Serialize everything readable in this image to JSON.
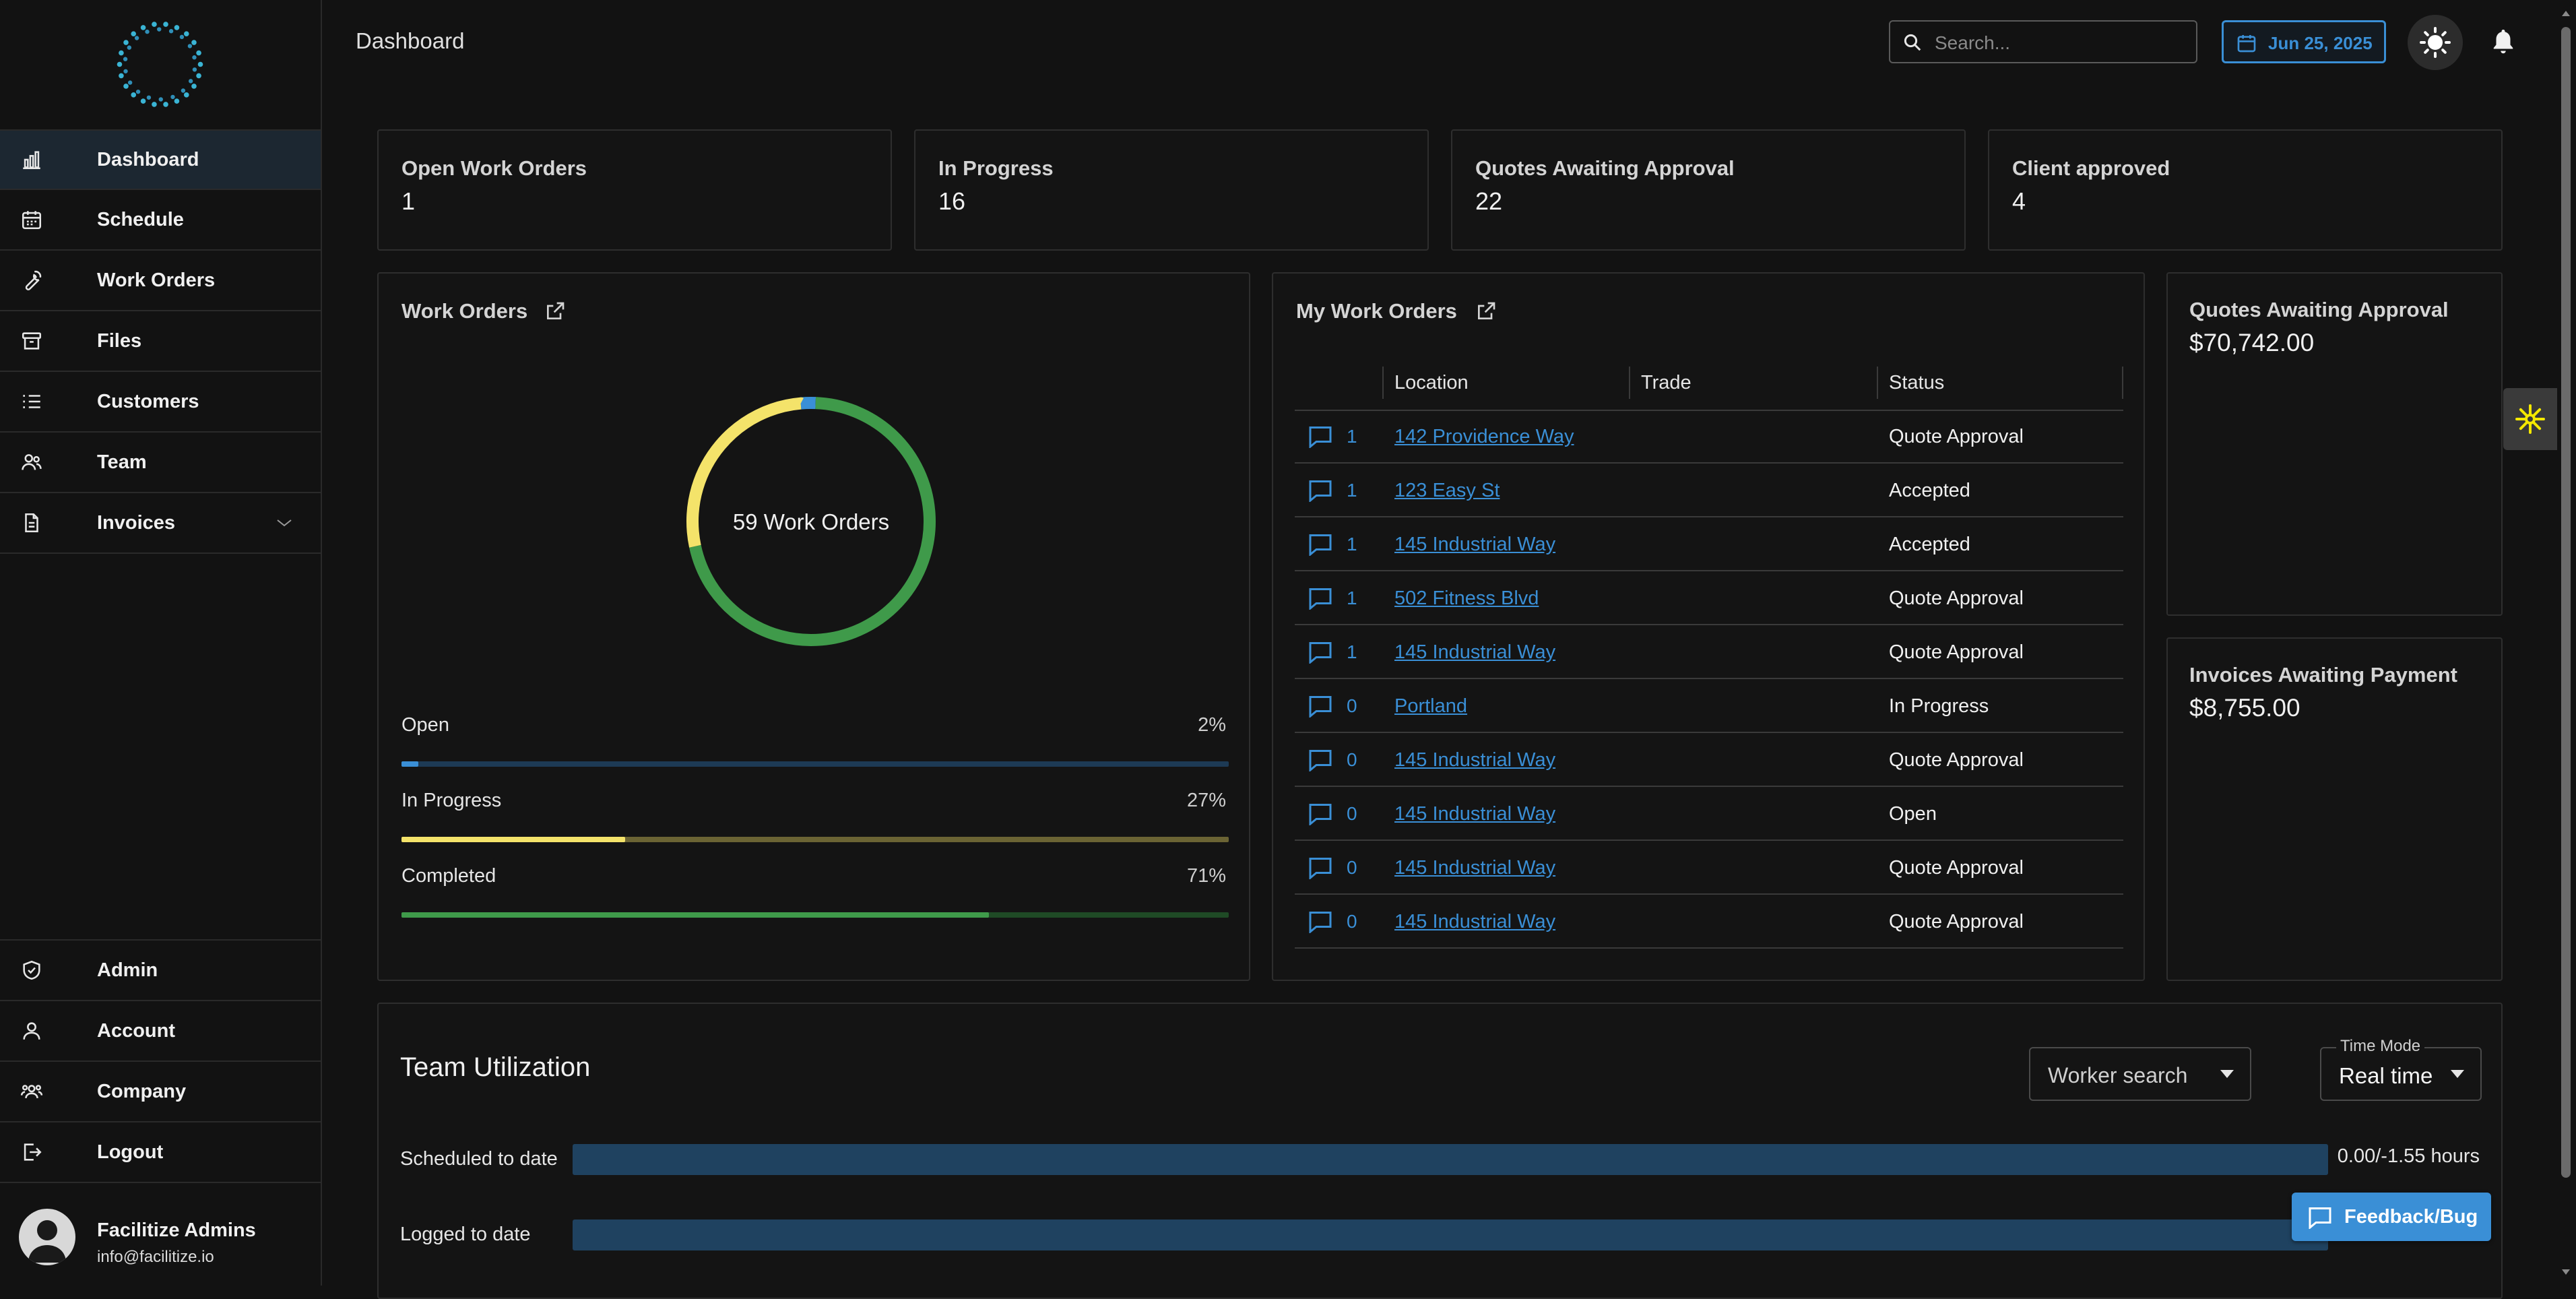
{
  "header": {
    "page_title": "Dashboard",
    "search_placeholder": "Search...",
    "date": "Jun 25, 2025"
  },
  "sidebar": {
    "nav": [
      {
        "label": "Dashboard",
        "icon": "bar-chart-icon",
        "active": true
      },
      {
        "label": "Schedule",
        "icon": "calendar-icon"
      },
      {
        "label": "Work Orders",
        "icon": "wrench-icon"
      },
      {
        "label": "Files",
        "icon": "archive-icon"
      },
      {
        "label": "Customers",
        "icon": "list-icon"
      },
      {
        "label": "Team",
        "icon": "users-icon"
      },
      {
        "label": "Invoices",
        "icon": "file-dollar-icon",
        "expandable": true
      }
    ],
    "bottom_nav": [
      {
        "label": "Admin",
        "icon": "shield-check-icon"
      },
      {
        "label": "Account",
        "icon": "user-icon"
      },
      {
        "label": "Company",
        "icon": "group-icon"
      },
      {
        "label": "Logout",
        "icon": "logout-icon"
      }
    ],
    "user": {
      "name": "Facilitize Admins",
      "email": "info@facilitize.io"
    }
  },
  "stats": [
    {
      "title": "Open Work Orders",
      "value": "1"
    },
    {
      "title": "In Progress",
      "value": "16"
    },
    {
      "title": "Quotes Awaiting Approval",
      "value": "22"
    },
    {
      "title": "Client approved",
      "value": "4"
    }
  ],
  "work_orders": {
    "title": "Work Orders",
    "center_label": "59 Work Orders",
    "breakdown": [
      {
        "label": "Open",
        "pct": "2%",
        "fraction": 0.02,
        "color": "#3a8fd6",
        "track": "#1d3a55"
      },
      {
        "label": "In Progress",
        "pct": "27%",
        "fraction": 0.27,
        "color": "#f4e36a",
        "track": "#6b6434"
      },
      {
        "label": "Completed",
        "pct": "71%",
        "fraction": 0.71,
        "color": "#3f9a4a",
        "track": "#1f4a25"
      }
    ]
  },
  "my_work_orders": {
    "title": "My Work Orders",
    "columns": [
      "Location",
      "Trade",
      "Status"
    ],
    "rows": [
      {
        "count": "1",
        "location": "142 Providence Way",
        "trade": "",
        "status": "Quote Approval"
      },
      {
        "count": "1",
        "location": "123 Easy St",
        "trade": "",
        "status": "Accepted"
      },
      {
        "count": "1",
        "location": "145 Industrial Way",
        "trade": "",
        "status": "Accepted"
      },
      {
        "count": "1",
        "location": "502 Fitness Blvd",
        "trade": "",
        "status": "Quote Approval"
      },
      {
        "count": "1",
        "location": "145 Industrial Way",
        "trade": "",
        "status": "Quote Approval"
      },
      {
        "count": "0",
        "location": "Portland",
        "trade": "",
        "status": "In Progress"
      },
      {
        "count": "0",
        "location": "145 Industrial Way",
        "trade": "",
        "status": "Quote Approval"
      },
      {
        "count": "0",
        "location": "145 Industrial Way",
        "trade": "",
        "status": "Open"
      },
      {
        "count": "0",
        "location": "145 Industrial Way",
        "trade": "",
        "status": "Quote Approval"
      },
      {
        "count": "0",
        "location": "145 Industrial Way",
        "trade": "",
        "status": "Quote Approval"
      }
    ]
  },
  "side_cards": {
    "quotes": {
      "title": "Quotes Awaiting Approval",
      "value": "$70,742.00"
    },
    "invoices": {
      "title": "Invoices Awaiting Payment",
      "value": "$8,755.00"
    }
  },
  "team_utilization": {
    "title": "Team Utilization",
    "worker_search": "Worker search",
    "time_mode_label": "Time Mode",
    "time_mode_value": "Real time",
    "rows": [
      {
        "label": "Scheduled to date",
        "value": "0.00/-1.55 hours"
      },
      {
        "label": "Logged to date",
        "value": ""
      }
    ]
  },
  "feedback_label": "Feedback/Bug",
  "colors": {
    "accent": "#3a8fd6",
    "open": "#3a8fd6",
    "in_progress": "#f4e36a",
    "completed": "#3f9a4a"
  }
}
